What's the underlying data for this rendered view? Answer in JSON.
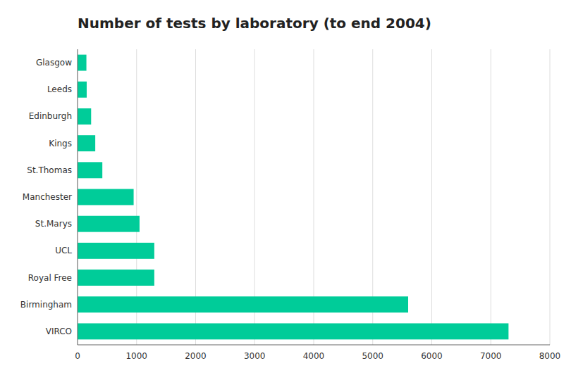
{
  "chart_data": {
    "type": "bar",
    "orientation": "horizontal",
    "title": "Number of tests by laboratory (to end 2004)",
    "categories": [
      "Glasgow",
      "Leeds",
      "Edinburgh",
      "Kings",
      "St.Thomas",
      "Manchester",
      "St.Marys",
      "UCL",
      "Royal Free",
      "Birmingham",
      "VIRCO"
    ],
    "values": [
      150,
      155,
      230,
      300,
      420,
      950,
      1050,
      1300,
      1300,
      5600,
      7300
    ],
    "color": "#00CC99",
    "xlim": [
      0,
      8000
    ],
    "xticks": [
      0,
      1000,
      2000,
      3000,
      4000,
      5000,
      6000,
      7000,
      8000
    ],
    "grid": true
  }
}
